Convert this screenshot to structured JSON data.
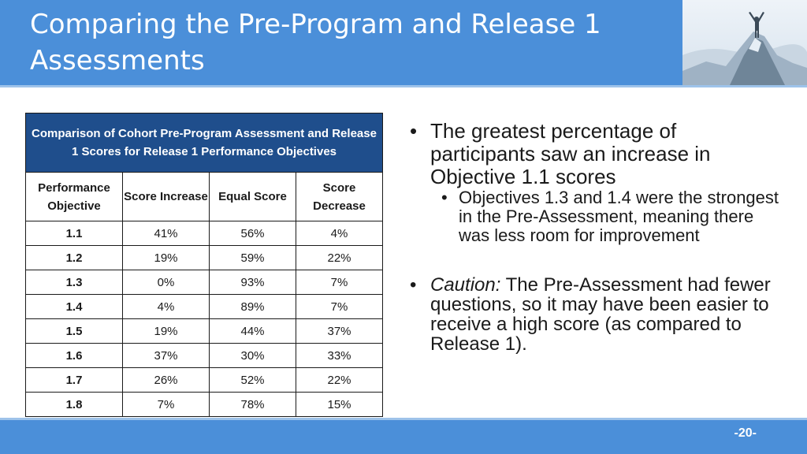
{
  "slide": {
    "title": "Comparing the Pre-Program and Release 1 Assessments",
    "page_number": "-20-"
  },
  "table": {
    "caption": "Comparison of Cohort Pre-Program Assessment and Release 1 Scores for Release 1 Performance Objectives",
    "headers": {
      "objective": "Performance Objective",
      "increase": "Score Increase",
      "equal": "Equal Score",
      "decrease": "Score Decrease"
    },
    "rows": [
      {
        "objective": "1.1",
        "increase": "41%",
        "equal": "56%",
        "decrease": "4%"
      },
      {
        "objective": "1.2",
        "increase": "19%",
        "equal": "59%",
        "decrease": "22%"
      },
      {
        "objective": "1.3",
        "increase": "0%",
        "equal": "93%",
        "decrease": "7%"
      },
      {
        "objective": "1.4",
        "increase": "4%",
        "equal": "89%",
        "decrease": "7%"
      },
      {
        "objective": "1.5",
        "increase": "19%",
        "equal": "44%",
        "decrease": "37%"
      },
      {
        "objective": "1.6",
        "increase": "37%",
        "equal": "30%",
        "decrease": "33%"
      },
      {
        "objective": "1.7",
        "increase": "26%",
        "equal": "52%",
        "decrease": "22%"
      },
      {
        "objective": "1.8",
        "increase": "7%",
        "equal": "78%",
        "decrease": "15%"
      }
    ]
  },
  "bullets": {
    "point1": "The greatest percentage of participants saw an increase in Objective 1.1 scores",
    "point1_sub": "Objectives 1.3 and 1.4 were the strongest in the Pre-Assessment, meaning there was less room for improvement",
    "point2_label": "Caution:",
    "point2_text": "The Pre-Assessment had fewer questions, so it may have been easier to receive a high score (as compared to Release 1)."
  },
  "colors": {
    "header_blue": "#4b8fd9",
    "table_caption_navy": "#1f4e8c"
  }
}
